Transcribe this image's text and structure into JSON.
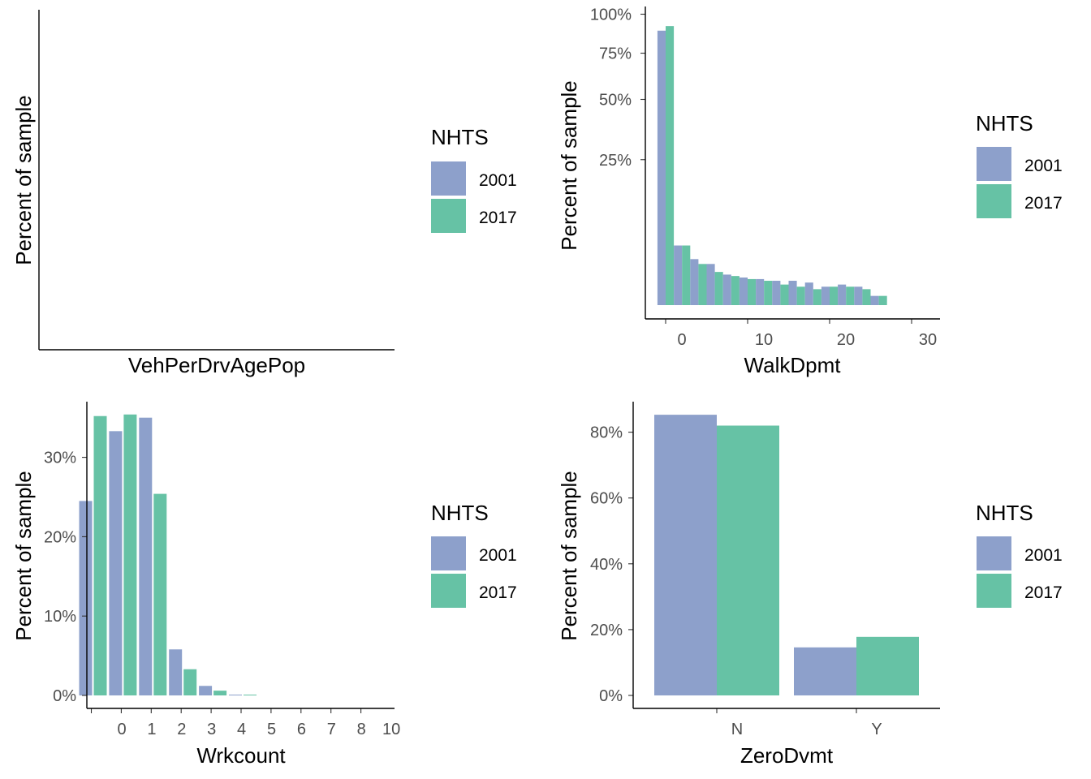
{
  "legend": {
    "title": "NHTS",
    "entries": [
      {
        "label": "2001",
        "color": "#8DA0CB"
      },
      {
        "label": "2017",
        "color": "#66C2A5"
      }
    ]
  },
  "chart_data": [
    {
      "type": "bar",
      "xlabel": "VehPerDrvAgePop",
      "ylabel": "Percent of sample",
      "series": [
        {
          "name": "2001",
          "values": []
        },
        {
          "name": "2017",
          "values": []
        }
      ],
      "x_ticks": [],
      "y_ticks": [],
      "legend_position": "right"
    },
    {
      "type": "bar",
      "xlabel": "WalkDpmt",
      "ylabel": "Percent of sample",
      "y_scale": "sqrt",
      "ylim": [
        0,
        1
      ],
      "xlim": [
        -2,
        30
      ],
      "bin_width": 2,
      "x_ticks": [
        0,
        10,
        20,
        30
      ],
      "y_ticks": [
        0.25,
        0.5,
        0.75,
        1.0
      ],
      "y_tick_labels": [
        "25%",
        "50%",
        "75%",
        "100%"
      ],
      "x": [
        0,
        2,
        4,
        6,
        8,
        10,
        12,
        14,
        16,
        18,
        20,
        22,
        24,
        26
      ],
      "series": [
        {
          "name": "2001",
          "values": [
            0.89,
            0.042,
            0.025,
            0.02,
            0.011,
            0.009,
            0.008,
            0.007,
            0.007,
            0.006,
            0.004,
            0.005,
            0.004,
            0.001
          ]
        },
        {
          "name": "2017",
          "values": [
            0.92,
            0.042,
            0.02,
            0.013,
            0.01,
            0.008,
            0.007,
            0.005,
            0.004,
            0.003,
            0.004,
            0.004,
            0.003,
            0.001
          ]
        }
      ],
      "legend_position": "right"
    },
    {
      "type": "bar",
      "xlabel": "Wrkcount",
      "ylabel": "Percent of sample",
      "ylim": [
        0,
        0.36
      ],
      "xlim": [
        -0.6,
        9.6
      ],
      "x_ticks": [
        0,
        1,
        2,
        3,
        4,
        5,
        6,
        7,
        8,
        9
      ],
      "x_tick_labels": [
        "0",
        "1",
        "2",
        "3",
        "4",
        "5",
        "6",
        "7",
        "8",
        "10"
      ],
      "y_ticks": [
        0,
        0.1,
        0.2,
        0.3
      ],
      "y_tick_labels": [
        "0%",
        "10%",
        "20%",
        "30%"
      ],
      "x": [
        0,
        1,
        2,
        3,
        4,
        5
      ],
      "series": [
        {
          "name": "2001",
          "values": [
            0.245,
            0.333,
            0.35,
            0.058,
            0.012,
            0.001
          ]
        },
        {
          "name": "2017",
          "values": [
            0.352,
            0.354,
            0.254,
            0.033,
            0.006,
            0.001
          ]
        }
      ],
      "legend_position": "right"
    },
    {
      "type": "bar",
      "xlabel": "ZeroDvmt",
      "ylabel": "Percent of sample",
      "ylim": [
        0,
        0.9
      ],
      "categories": [
        "N",
        "Y"
      ],
      "y_ticks": [
        0,
        0.2,
        0.4,
        0.6,
        0.8
      ],
      "y_tick_labels": [
        "0%",
        "20%",
        "40%",
        "60%",
        "80%"
      ],
      "series": [
        {
          "name": "2001",
          "values": [
            0.853,
            0.146
          ]
        },
        {
          "name": "2017",
          "values": [
            0.82,
            0.178
          ]
        }
      ],
      "legend_position": "right"
    }
  ]
}
